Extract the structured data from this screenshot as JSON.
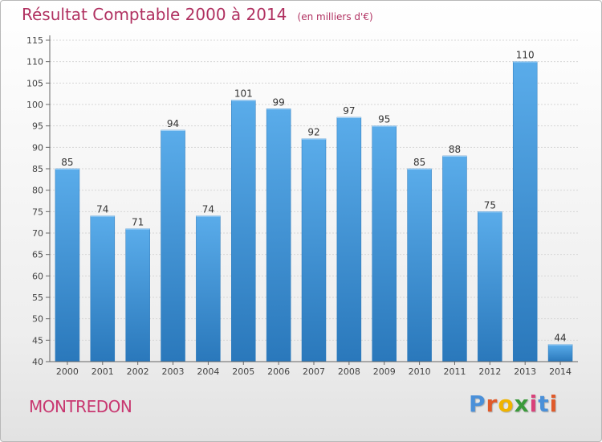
{
  "header": {
    "title": "Résultat Comptable 2000 à 2014",
    "unit_note": "(en milliers d'€)"
  },
  "footer": {
    "commune": "MONTREDON",
    "brand_letters": [
      "P",
      "r",
      "o",
      "x",
      "i",
      "t",
      "i"
    ],
    "brand_colors": [
      "#4a90d9",
      "#e05a2a",
      "#f0b400",
      "#3a9a3a",
      "#d9417a",
      "#4a90d9",
      "#e05a2a"
    ]
  },
  "chart_data": {
    "type": "bar",
    "categories": [
      "2000",
      "2001",
      "2002",
      "2003",
      "2004",
      "2005",
      "2006",
      "2007",
      "2008",
      "2009",
      "2010",
      "2011",
      "2012",
      "2013",
      "2014"
    ],
    "values": [
      85,
      74,
      71,
      94,
      74,
      101,
      99,
      92,
      97,
      95,
      85,
      88,
      75,
      110,
      44
    ],
    "yticks": [
      40,
      45,
      50,
      55,
      60,
      65,
      70,
      75,
      80,
      85,
      90,
      95,
      100,
      105,
      110,
      115
    ],
    "ylim": [
      40,
      115
    ],
    "grid": true,
    "bar_color": "#3f96d6",
    "title": "Résultat Comptable 2000 à 2014",
    "xlabel": "",
    "ylabel": ""
  }
}
